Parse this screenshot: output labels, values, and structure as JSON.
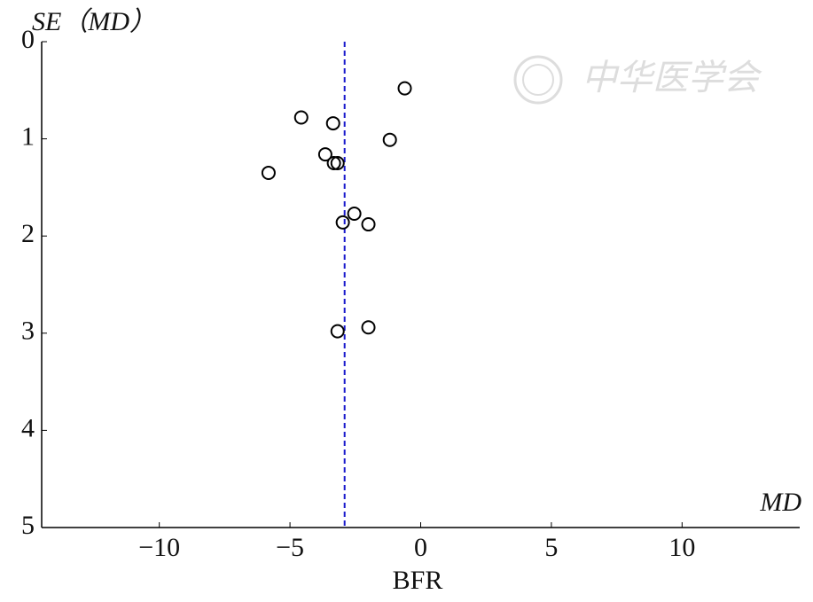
{
  "chart_data": {
    "type": "scatter",
    "y_label": "SE（MD）",
    "x_unit_label": "MD",
    "x_label": "BFR",
    "watermark": "中华医学会",
    "x": [
      -0.61,
      -4.57,
      -3.35,
      -1.18,
      -3.65,
      -3.32,
      -3.18,
      -5.82,
      -2.54,
      -2.98,
      -2.0,
      -2.0,
      -3.18
    ],
    "values": [
      0.48,
      0.78,
      0.84,
      1.01,
      1.16,
      1.25,
      1.25,
      1.35,
      1.77,
      1.86,
      1.88,
      2.94,
      2.98
    ],
    "color": "#000000",
    "reference_line": -2.91,
    "reference_color": "#1a1acc",
    "xlim": [
      -14.5,
      14.5
    ],
    "xticks": [
      {
        "value": -10,
        "label": "−10"
      },
      {
        "value": -5,
        "label": "−5"
      },
      0,
      5,
      10
    ],
    "ylim": [
      0,
      5
    ],
    "yticks": [
      0,
      1,
      2,
      3,
      4,
      5
    ],
    "y_inverted": true
  }
}
